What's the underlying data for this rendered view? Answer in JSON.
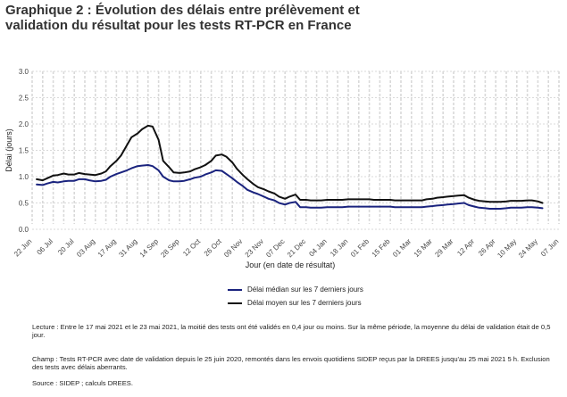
{
  "title": {
    "line1": "Graphique 2 : Évolution des délais entre prélèvement et",
    "line2": "validation du résultat pour les tests RT-PCR en France"
  },
  "chart_data": {
    "type": "line",
    "ylabel": "Délai (jours)",
    "xlabel": "Jour (en date de résultat)",
    "ylim": [
      0,
      3.0
    ],
    "yticks": [
      "0.0",
      "0.5",
      "1.0",
      "1.5",
      "2.0",
      "2.5",
      "3.0"
    ],
    "ytick_values": [
      0,
      0.5,
      1.0,
      1.5,
      2.0,
      2.5,
      3.0
    ],
    "xlim_days": [
      0,
      350
    ],
    "xticks": [
      "22 Jun",
      "06 Jul",
      "20 Jul",
      "03 Aug",
      "17 Aug",
      "31 Aug",
      "14 Sep",
      "28 Sep",
      "12 Oct",
      "26 Oct",
      "09 Nov",
      "23 Nov",
      "07 Dec",
      "21 Dec",
      "04 Jan",
      "18 Jan",
      "01 Feb",
      "15 Feb",
      "01 Mar",
      "15 Mar",
      "29 Mar",
      "12 Apr",
      "26 Apr",
      "10 May",
      "24 May",
      "07 Jun"
    ],
    "grid": true,
    "legend_position": "bottom",
    "series": [
      {
        "name": "Délai médian sur les 7 derniers jours",
        "color": "#1a237e",
        "x": [
          3,
          7,
          10,
          14,
          17,
          21,
          24,
          28,
          31,
          35,
          38,
          42,
          46,
          49,
          52,
          56,
          59,
          63,
          66,
          70,
          73,
          77,
          80,
          84,
          87,
          91,
          94,
          98,
          101,
          105,
          108,
          112,
          115,
          119,
          122,
          126,
          129,
          133,
          136,
          140,
          143,
          147,
          150,
          154,
          157,
          161,
          164,
          168,
          171,
          175,
          178,
          182,
          185,
          189,
          192,
          196,
          199,
          203,
          206,
          210,
          213,
          217,
          220,
          224,
          227,
          231,
          234,
          238,
          241,
          245,
          248,
          252,
          255,
          259,
          262,
          266,
          269,
          273,
          276,
          280,
          283,
          287,
          290,
          294,
          297,
          301,
          304,
          308,
          311,
          315,
          318,
          322,
          325,
          329,
          332,
          336,
          339
        ],
        "values": [
          0.85,
          0.84,
          0.87,
          0.9,
          0.89,
          0.91,
          0.92,
          0.92,
          0.95,
          0.95,
          0.93,
          0.91,
          0.92,
          0.94,
          1.0,
          1.05,
          1.08,
          1.12,
          1.16,
          1.2,
          1.21,
          1.22,
          1.2,
          1.12,
          1.0,
          0.93,
          0.91,
          0.91,
          0.92,
          0.95,
          0.98,
          1.0,
          1.04,
          1.08,
          1.12,
          1.11,
          1.05,
          0.97,
          0.9,
          0.82,
          0.75,
          0.7,
          0.67,
          0.62,
          0.58,
          0.55,
          0.5,
          0.47,
          0.5,
          0.52,
          0.42,
          0.42,
          0.41,
          0.41,
          0.41,
          0.42,
          0.42,
          0.42,
          0.42,
          0.43,
          0.43,
          0.43,
          0.43,
          0.43,
          0.43,
          0.43,
          0.43,
          0.43,
          0.42,
          0.42,
          0.42,
          0.42,
          0.42,
          0.42,
          0.43,
          0.44,
          0.45,
          0.46,
          0.47,
          0.48,
          0.49,
          0.5,
          0.46,
          0.43,
          0.41,
          0.4,
          0.39,
          0.39,
          0.39,
          0.4,
          0.41,
          0.41,
          0.41,
          0.42,
          0.42,
          0.41,
          0.4
        ]
      },
      {
        "name": "Délai moyen sur les 7 derniers jours",
        "color": "#111111",
        "x": [
          3,
          7,
          10,
          14,
          17,
          21,
          24,
          28,
          31,
          35,
          38,
          42,
          46,
          49,
          52,
          56,
          59,
          63,
          66,
          70,
          73,
          77,
          80,
          84,
          87,
          91,
          94,
          98,
          101,
          105,
          108,
          112,
          115,
          119,
          122,
          126,
          129,
          133,
          136,
          140,
          143,
          147,
          150,
          154,
          157,
          161,
          164,
          168,
          171,
          175,
          178,
          182,
          185,
          189,
          192,
          196,
          199,
          203,
          206,
          210,
          213,
          217,
          220,
          224,
          227,
          231,
          234,
          238,
          241,
          245,
          248,
          252,
          255,
          259,
          262,
          266,
          269,
          273,
          276,
          280,
          283,
          287,
          290,
          294,
          297,
          301,
          304,
          308,
          311,
          315,
          318,
          322,
          325,
          329,
          332,
          336,
          339
        ],
        "values": [
          0.95,
          0.93,
          0.97,
          1.02,
          1.03,
          1.06,
          1.04,
          1.04,
          1.07,
          1.05,
          1.04,
          1.03,
          1.06,
          1.1,
          1.2,
          1.3,
          1.4,
          1.6,
          1.75,
          1.82,
          1.9,
          1.97,
          1.95,
          1.7,
          1.3,
          1.18,
          1.08,
          1.07,
          1.08,
          1.1,
          1.14,
          1.18,
          1.22,
          1.3,
          1.4,
          1.42,
          1.38,
          1.27,
          1.15,
          1.03,
          0.95,
          0.86,
          0.8,
          0.76,
          0.72,
          0.68,
          0.62,
          0.58,
          0.62,
          0.66,
          0.56,
          0.56,
          0.55,
          0.55,
          0.55,
          0.56,
          0.56,
          0.56,
          0.56,
          0.57,
          0.57,
          0.57,
          0.57,
          0.57,
          0.56,
          0.56,
          0.56,
          0.56,
          0.55,
          0.55,
          0.55,
          0.55,
          0.55,
          0.55,
          0.57,
          0.58,
          0.6,
          0.61,
          0.62,
          0.63,
          0.64,
          0.65,
          0.6,
          0.56,
          0.54,
          0.53,
          0.52,
          0.52,
          0.52,
          0.53,
          0.54,
          0.54,
          0.54,
          0.55,
          0.55,
          0.53,
          0.5
        ]
      }
    ]
  },
  "legend": [
    {
      "label": "Délai médian sur les 7 derniers jours",
      "color": "#1a237e"
    },
    {
      "label": "Délai moyen sur les 7 derniers jours",
      "color": "#111111"
    }
  ],
  "notes": {
    "lecture": "Lecture : Entre le 17 mai 2021 et le 23 mai 2021, la moitié des tests ont été validés en 0,4 jour ou moins. Sur la même période, la moyenne du délai de validation était de 0,5 jour.",
    "champ": "Champ : Tests RT-PCR avec date de validation depuis le 25 juin 2020, remontés dans les envois quotidiens SIDEP reçus par la DREES jusqu'au 25 mai 2021 5 h. Exclusion des tests avec délais aberrants.",
    "source": "Source : SIDEP ; calculs DREES."
  }
}
